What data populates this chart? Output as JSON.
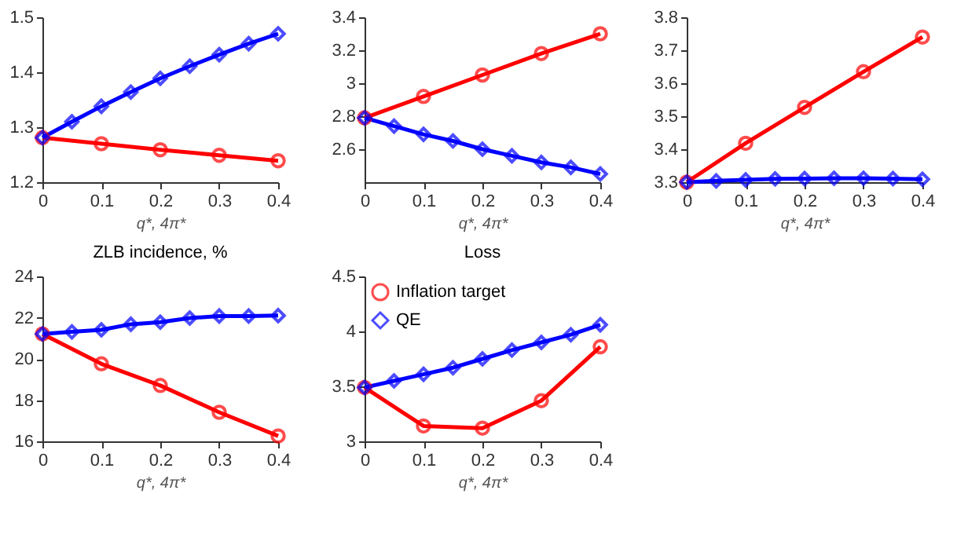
{
  "chart_data": [
    {
      "type": "line",
      "xlabel": "q*, 4π*",
      "xlim": [
        0,
        0.4
      ],
      "xticks": [
        0,
        0.1,
        0.2,
        0.3,
        0.4
      ],
      "ylim": [
        1.2,
        1.5
      ],
      "yticks": [
        1.2,
        1.3,
        1.4,
        1.5
      ],
      "grid": false,
      "line_style": "solid",
      "series": [
        {
          "color": "#ff0000",
          "marker": "circle",
          "x": [
            0,
            0.1,
            0.2,
            0.3,
            0.4
          ],
          "values": [
            1.281,
            1.27,
            1.259,
            1.249,
            1.239
          ]
        },
        {
          "color": "#0000ff",
          "marker": "diamond",
          "x": [
            0,
            0.05,
            0.1,
            0.15,
            0.2,
            0.25,
            0.3,
            0.35,
            0.4
          ],
          "values": [
            1.281,
            1.31,
            1.338,
            1.364,
            1.389,
            1.411,
            1.432,
            1.452,
            1.47
          ]
        }
      ]
    },
    {
      "type": "line",
      "xlabel": "q*, 4π*",
      "xlim": [
        0,
        0.4
      ],
      "xticks": [
        0,
        0.1,
        0.2,
        0.3,
        0.4
      ],
      "ylim": [
        2.4,
        3.4
      ],
      "yticks": [
        2.6,
        2.8,
        3,
        3.2,
        3.4
      ],
      "grid": false,
      "line_style": "solid",
      "series": [
        {
          "color": "#ff0000",
          "marker": "circle",
          "x": [
            0,
            0.1,
            0.2,
            0.3,
            0.4
          ],
          "values": [
            2.79,
            2.92,
            3.05,
            3.18,
            3.3
          ]
        },
        {
          "color": "#0000ff",
          "marker": "diamond",
          "x": [
            0,
            0.05,
            0.1,
            0.15,
            0.2,
            0.25,
            0.3,
            0.35,
            0.4
          ],
          "values": [
            2.79,
            2.74,
            2.69,
            2.65,
            2.6,
            2.56,
            2.52,
            2.49,
            2.45
          ]
        }
      ]
    },
    {
      "type": "line",
      "xlabel": "q*, 4π*",
      "xlim": [
        0,
        0.4
      ],
      "xticks": [
        0,
        0.1,
        0.2,
        0.3,
        0.4
      ],
      "ylim": [
        3.3,
        3.8
      ],
      "yticks": [
        3.3,
        3.4,
        3.5,
        3.6,
        3.7,
        3.8
      ],
      "grid": false,
      "line_style": "solid",
      "series": [
        {
          "color": "#ff0000",
          "marker": "circle",
          "x": [
            0,
            0.1,
            0.2,
            0.3,
            0.4
          ],
          "values": [
            3.3,
            3.418,
            3.527,
            3.635,
            3.74
          ]
        },
        {
          "color": "#0000ff",
          "marker": "diamond",
          "x": [
            0,
            0.05,
            0.1,
            0.15,
            0.2,
            0.25,
            0.3,
            0.35,
            0.4
          ],
          "values": [
            3.3,
            3.304,
            3.307,
            3.31,
            3.311,
            3.312,
            3.312,
            3.311,
            3.309
          ]
        }
      ]
    },
    {
      "type": "line",
      "title": "ZLB incidence, %",
      "xlabel": "q*, 4π*",
      "xlim": [
        0,
        0.4
      ],
      "xticks": [
        0,
        0.1,
        0.2,
        0.3,
        0.4
      ],
      "ylim": [
        16,
        24
      ],
      "yticks": [
        16,
        18,
        20,
        22,
        24
      ],
      "grid": false,
      "line_style": "solid",
      "series": [
        {
          "color": "#ff0000",
          "marker": "circle",
          "x": [
            0,
            0.1,
            0.2,
            0.3,
            0.4
          ],
          "values": [
            21.21,
            19.76,
            18.71,
            17.41,
            16.26
          ]
        },
        {
          "color": "#0000ff",
          "marker": "diamond",
          "x": [
            0,
            0.05,
            0.1,
            0.15,
            0.2,
            0.25,
            0.3,
            0.35,
            0.4
          ],
          "values": [
            21.21,
            21.31,
            21.41,
            21.68,
            21.78,
            21.98,
            22.08,
            22.08,
            22.1
          ]
        }
      ]
    },
    {
      "type": "line",
      "title": "Loss",
      "xlabel": "q*, 4π*",
      "xlim": [
        0,
        0.4
      ],
      "xticks": [
        0,
        0.1,
        0.2,
        0.3,
        0.4
      ],
      "ylim": [
        3,
        4.5
      ],
      "yticks": [
        3,
        3.5,
        4,
        4.5
      ],
      "grid": false,
      "line_style": "solid",
      "legend": "top left",
      "series": [
        {
          "name": "Inflation target",
          "color": "#ff0000",
          "marker": "circle",
          "x": [
            0,
            0.1,
            0.2,
            0.3,
            0.4
          ],
          "values": [
            3.49,
            3.14,
            3.12,
            3.37,
            3.86
          ]
        },
        {
          "name": "QE",
          "color": "#0000ff",
          "marker": "diamond",
          "x": [
            0,
            0.05,
            0.1,
            0.15,
            0.2,
            0.25,
            0.3,
            0.35,
            0.4
          ],
          "values": [
            3.49,
            3.55,
            3.61,
            3.67,
            3.75,
            3.83,
            3.9,
            3.97,
            4.06
          ]
        }
      ]
    }
  ]
}
